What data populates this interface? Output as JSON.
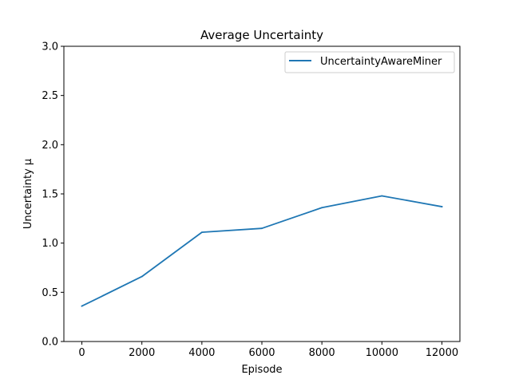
{
  "chart_data": {
    "type": "line",
    "title": "Average Uncertainty",
    "xlabel": "Episode",
    "ylabel": "Uncertainty μ",
    "xlim": [
      -600,
      12600
    ],
    "ylim": [
      0,
      3
    ],
    "x_ticks": [
      0,
      2000,
      4000,
      6000,
      8000,
      10000,
      12000
    ],
    "y_ticks": [
      0.0,
      0.5,
      1.0,
      1.5,
      2.0,
      2.5,
      3.0
    ],
    "x_tick_labels": [
      "0",
      "2000",
      "4000",
      "6000",
      "8000",
      "10000",
      "12000"
    ],
    "y_tick_labels": [
      "0.0",
      "0.5",
      "1.0",
      "1.5",
      "2.0",
      "2.5",
      "3.0"
    ],
    "grid": false,
    "legend_position": "top-right",
    "series": [
      {
        "name": "UncertaintyAwareMiner",
        "color": "#1f77b4",
        "x": [
          0,
          2000,
          4000,
          6000,
          8000,
          10000,
          12000
        ],
        "values": [
          0.36,
          0.66,
          1.11,
          1.15,
          1.36,
          1.48,
          1.37
        ]
      }
    ]
  }
}
